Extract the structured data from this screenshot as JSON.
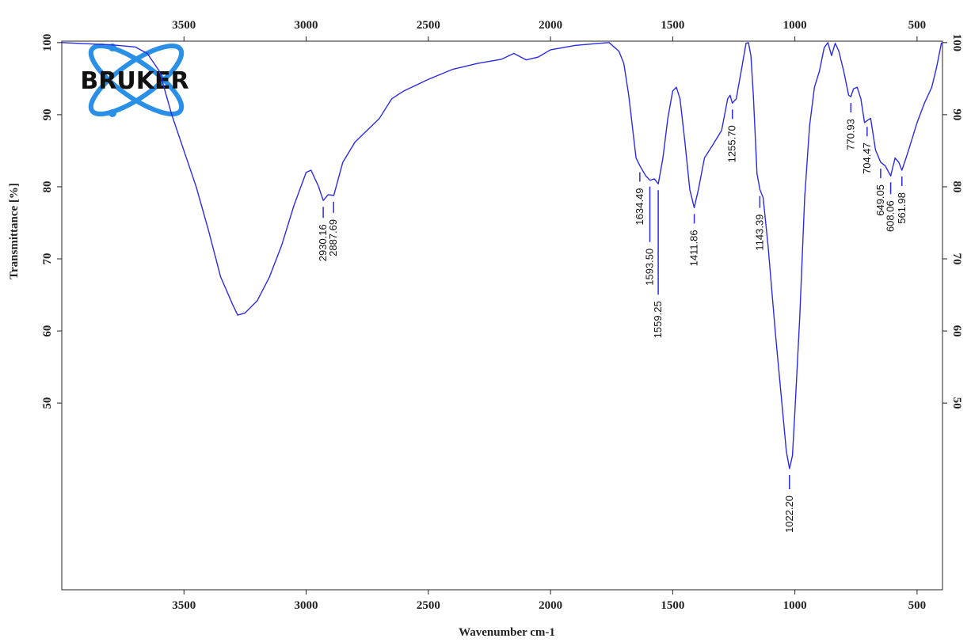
{
  "chart_data": {
    "type": "line",
    "logo": "BRUKER",
    "xlabel": "Wavenumber cm-1",
    "ylabel": "Transmittance [%]",
    "color": "#2b2be6",
    "xlim": [
      4000,
      396
    ],
    "ylim": [
      24.1,
      100.2
    ],
    "xticks": [
      3500,
      3000,
      2500,
      2000,
      1500,
      1000,
      500
    ],
    "yticks": [
      50,
      60,
      70,
      80,
      90,
      100
    ],
    "x": [
      4000,
      3800,
      3700,
      3650,
      3600,
      3550,
      3500,
      3450,
      3400,
      3350,
      3300,
      3280,
      3250,
      3200,
      3150,
      3100,
      3050,
      3000,
      2980,
      2950,
      2930,
      2910,
      2887,
      2850,
      2800,
      2700,
      2650,
      2600,
      2500,
      2400,
      2300,
      2200,
      2150,
      2100,
      2050,
      2000,
      1950,
      1900,
      1800,
      1760,
      1720,
      1700,
      1680,
      1650,
      1634,
      1610,
      1593,
      1575,
      1559,
      1540,
      1520,
      1500,
      1485,
      1470,
      1450,
      1430,
      1412,
      1395,
      1370,
      1340,
      1300,
      1275,
      1265,
      1256,
      1240,
      1220,
      1200,
      1190,
      1180,
      1170,
      1155,
      1143,
      1130,
      1110,
      1080,
      1050,
      1035,
      1022,
      1010,
      1000,
      980,
      960,
      940,
      920,
      900,
      880,
      865,
      850,
      835,
      820,
      800,
      780,
      771,
      760,
      745,
      730,
      715,
      704,
      690,
      670,
      649,
      630,
      608,
      590,
      575,
      562,
      545,
      520,
      500,
      470,
      440,
      420,
      400
    ],
    "values": [
      100,
      99.7,
      99.4,
      98.5,
      96,
      90,
      85,
      80,
      74,
      67.5,
      63.6,
      62.2,
      62.5,
      64.2,
      67.5,
      71.9,
      77.4,
      82,
      82.3,
      80.1,
      78.1,
      78.9,
      78.8,
      83.4,
      86.2,
      89.5,
      92.2,
      93.3,
      94.9,
      96.3,
      97.1,
      97.7,
      98.5,
      97.6,
      98,
      99,
      99.3,
      99.6,
      99.9,
      100,
      98.8,
      97.1,
      92.7,
      84,
      82.9,
      81.5,
      80.9,
      81.1,
      80.4,
      84,
      89.5,
      93.3,
      93.8,
      92.2,
      86.2,
      79.6,
      77.1,
      79.6,
      84,
      85.6,
      87.8,
      92.2,
      92.7,
      91.6,
      92.2,
      96,
      99.9,
      100,
      98.2,
      92.7,
      81.8,
      79.6,
      78.5,
      71.9,
      59.8,
      48.8,
      43.3,
      40.9,
      42.7,
      48.8,
      62,
      78.5,
      88.4,
      93.8,
      96,
      99.3,
      100,
      98.2,
      99.9,
      98.8,
      96,
      92.7,
      92.5,
      93.6,
      93.8,
      92.2,
      88.9,
      89.2,
      89.5,
      85.1,
      83.4,
      82.9,
      81.5,
      84,
      83.4,
      82.3,
      84,
      86.7,
      88.9,
      91.6,
      93.8,
      96.6,
      100
    ],
    "peaks": [
      {
        "x": 2930.16,
        "y": 78.1,
        "label": "2930.16"
      },
      {
        "x": 2887.69,
        "y": 78.8,
        "label": "2887.69"
      },
      {
        "x": 1634.49,
        "y": 82.9,
        "label": "1634.49"
      },
      {
        "x": 1593.5,
        "y": 80.9,
        "label": "1593.50"
      },
      {
        "x": 1559.25,
        "y": 80.4,
        "label": "1559.25"
      },
      {
        "x": 1411.86,
        "y": 77.1,
        "label": "1411.86"
      },
      {
        "x": 1255.7,
        "y": 91.6,
        "label": "1255.70"
      },
      {
        "x": 1143.39,
        "y": 79.6,
        "label": "1143.39"
      },
      {
        "x": 1022.2,
        "y": 40.9,
        "label": "1022.20"
      },
      {
        "x": 770.93,
        "y": 92.5,
        "label": "770.93"
      },
      {
        "x": 704.47,
        "y": 89.2,
        "label": "704.47"
      },
      {
        "x": 649.05,
        "y": 83.4,
        "label": "649.05"
      },
      {
        "x": 608.06,
        "y": 81.5,
        "label": "608.06"
      },
      {
        "x": 561.98,
        "y": 82.3,
        "label": "561.98"
      }
    ]
  }
}
